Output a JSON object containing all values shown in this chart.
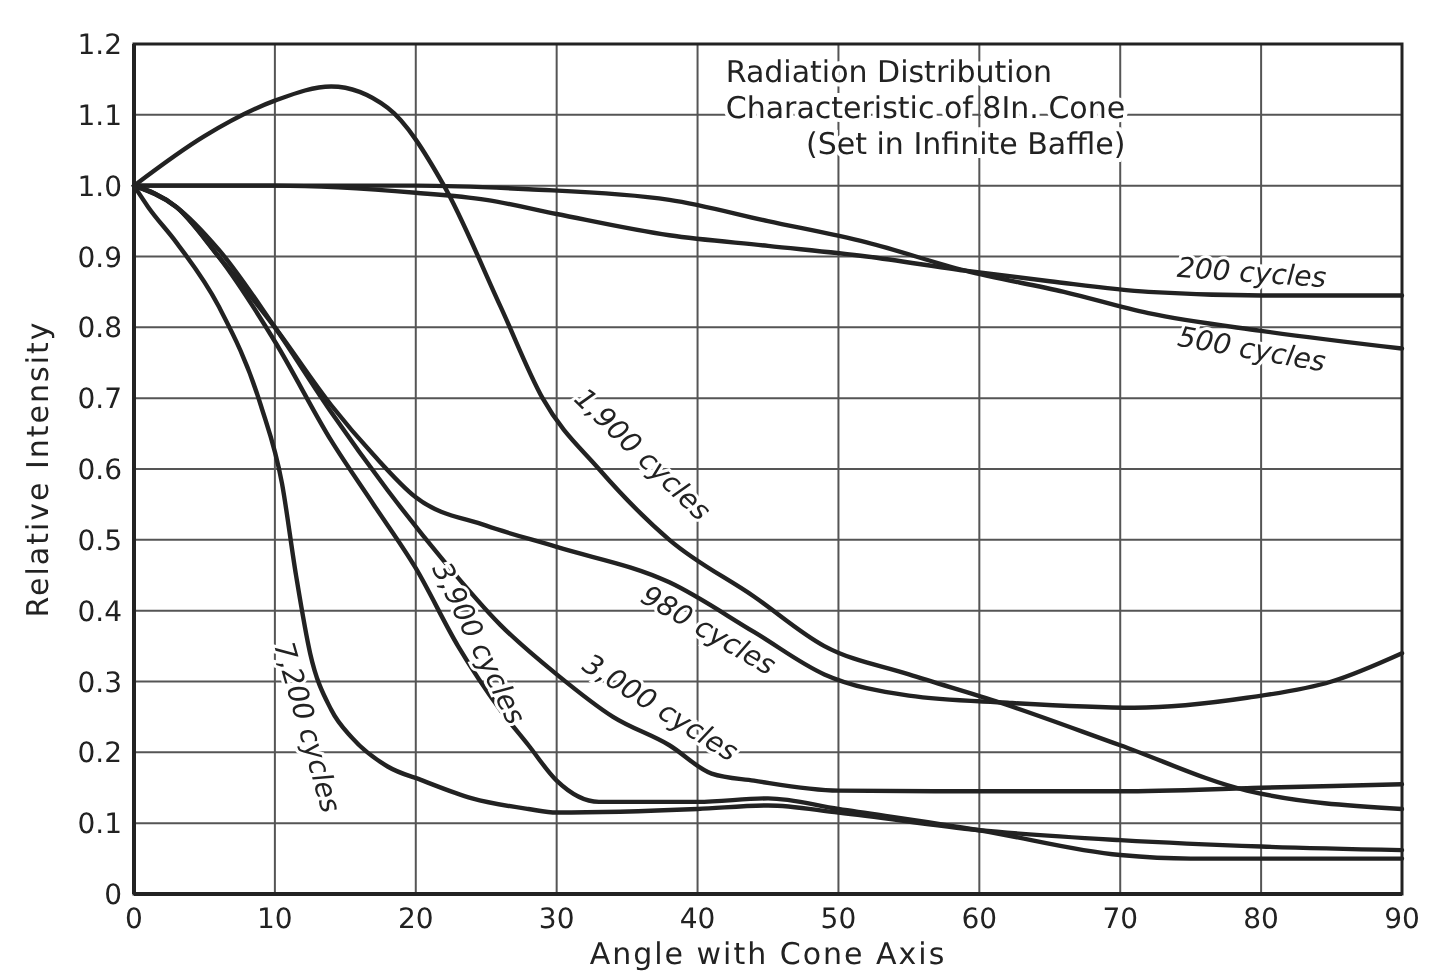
{
  "chart_data": {
    "type": "line",
    "title": "Radiation Distribution\nCharacteristic of 8In. Cone",
    "subtitle": "(Set in Infinite Baffle)",
    "xlabel": "Angle with Cone Axis",
    "ylabel": "Relative Intensity",
    "xlim": [
      0,
      90
    ],
    "xticks": [
      0,
      10,
      20,
      30,
      40,
      50,
      60,
      70,
      80,
      90
    ],
    "ylim": [
      0,
      1.2
    ],
    "yticks": [
      0,
      0.1,
      0.2,
      0.3,
      0.4,
      0.5,
      0.6,
      0.7,
      0.8,
      0.9,
      {
        "value": 1,
        "label": "1.0"
      },
      1.1,
      1.2
    ],
    "grid": true,
    "legend": false,
    "marker": "none",
    "line_style": "solid",
    "series": [
      {
        "name": "200 cycles",
        "color": "#222222",
        "x": [
          0,
          10,
          20,
          25,
          30,
          38,
          45,
          52,
          59,
          65,
          72,
          80,
          90
        ],
        "values": [
          1.0,
          1.0,
          0.99,
          0.98,
          0.96,
          0.93,
          0.915,
          0.9,
          0.88,
          0.865,
          0.85,
          0.845,
          0.845
        ]
      },
      {
        "name": "500 cycles",
        "color": "#222222",
        "x": [
          0,
          10,
          20,
          28,
          38,
          45,
          52,
          59,
          66,
          72,
          80,
          90
        ],
        "values": [
          1.0,
          1.0,
          1.0,
          0.995,
          0.98,
          0.95,
          0.92,
          0.88,
          0.85,
          0.82,
          0.795,
          0.77
        ]
      },
      {
        "name": "1,900 cycles",
        "color": "#222222",
        "x": [
          0,
          5,
          10,
          14,
          18,
          22,
          26,
          29,
          33,
          38,
          44,
          49,
          55,
          61.5,
          70,
          79,
          90
        ],
        "values": [
          1.0,
          1.07,
          1.12,
          1.14,
          1.11,
          1.0,
          0.83,
          0.7,
          0.6,
          0.5,
          0.42,
          0.35,
          0.31,
          0.27,
          0.21,
          0.146,
          0.12
        ]
      },
      {
        "name": "980 cycles",
        "color": "#222222",
        "x": [
          0,
          3,
          6,
          10,
          14,
          17,
          20,
          25,
          30,
          38,
          44,
          49,
          55,
          62,
          71,
          79,
          85,
          90
        ],
        "values": [
          1.0,
          0.97,
          0.9,
          0.8,
          0.69,
          0.62,
          0.56,
          0.52,
          0.49,
          0.44,
          0.37,
          0.31,
          0.28,
          0.27,
          0.263,
          0.277,
          0.3,
          0.34
        ]
      },
      {
        "name": "3,000 cycles",
        "color": "#222222",
        "x": [
          0,
          3,
          6,
          10,
          14,
          18,
          22,
          26,
          30,
          34,
          38,
          41,
          44,
          50,
          60,
          70,
          80,
          90
        ],
        "values": [
          1.0,
          0.97,
          0.91,
          0.8,
          0.68,
          0.57,
          0.47,
          0.38,
          0.31,
          0.25,
          0.21,
          0.17,
          0.16,
          0.146,
          0.145,
          0.145,
          0.15,
          0.155
        ]
      },
      {
        "name": "3,900 cycles",
        "color": "#222222",
        "x": [
          0,
          3,
          6,
          10,
          14,
          17,
          20,
          23,
          26,
          28,
          30,
          33,
          40,
          45,
          50,
          60,
          70,
          75,
          80,
          90
        ],
        "values": [
          1.0,
          0.97,
          0.9,
          0.78,
          0.64,
          0.55,
          0.46,
          0.35,
          0.26,
          0.21,
          0.16,
          0.13,
          0.13,
          0.135,
          0.12,
          0.09,
          0.055,
          0.05,
          0.05,
          0.05
        ]
      },
      {
        "name": "7,200 cycles",
        "color": "#222222",
        "x": [
          0,
          1,
          3,
          6,
          9,
          10.5,
          11.5,
          12.5,
          14,
          15.5,
          18,
          20.5,
          24,
          28,
          30,
          40,
          45,
          50,
          60,
          70,
          80,
          90
        ],
        "values": [
          1.0,
          0.97,
          0.92,
          0.83,
          0.69,
          0.58,
          0.45,
          0.34,
          0.26,
          0.22,
          0.18,
          0.16,
          0.135,
          0.12,
          0.115,
          0.12,
          0.125,
          0.115,
          0.09,
          0.076,
          0.067,
          0.062
        ]
      }
    ]
  }
}
